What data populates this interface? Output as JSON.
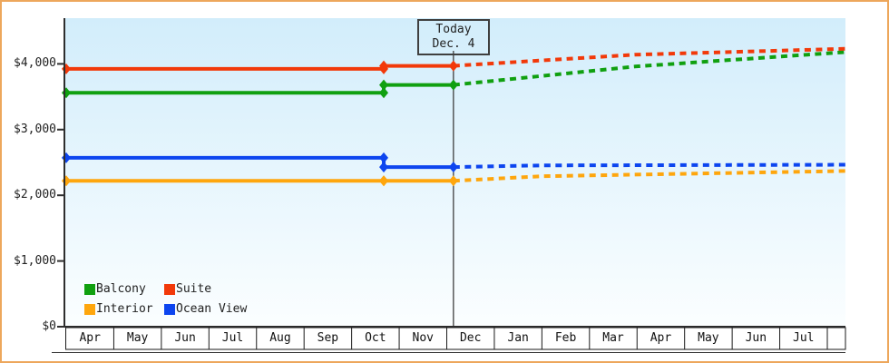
{
  "page": {
    "background": "#ffffff",
    "frame_border_color": "#eda75c",
    "axis_color": "#2e2e2e",
    "plot_bg_top": "#d2edfb",
    "plot_bg_bottom": "#fbfeff"
  },
  "today_flag": {
    "line1": "Today",
    "line2": "Dec. 4"
  },
  "chart_data": {
    "type": "line",
    "title": "",
    "xlabel": "",
    "ylabel": "",
    "grid": false,
    "legend_position": "bottom-left-inside",
    "x_axis": {
      "months": [
        "Apr",
        "May",
        "Jun",
        "Jul",
        "Aug",
        "Sep",
        "Oct",
        "Nov",
        "Dec",
        "Jan",
        "Feb",
        "Mar",
        "Apr",
        "May",
        "Jun",
        "Jul"
      ],
      "domain_months": [
        0,
        16.38
      ]
    },
    "y_axis": {
      "range": [
        0,
        4700
      ],
      "ticks": [
        {
          "label": "$0",
          "value": 0
        },
        {
          "label": "$1,000",
          "value": 1000
        },
        {
          "label": "$2,000",
          "value": 2000
        },
        {
          "label": "$3,000",
          "value": 3000
        },
        {
          "label": "$4,000",
          "value": 4000
        }
      ]
    },
    "today": {
      "x_month": 8.14,
      "label": "Today Dec. 4"
    },
    "series": [
      {
        "name": "Balcony",
        "color": "#10a010",
        "solid": [
          [
            0,
            3560
          ],
          [
            6.675,
            3560
          ],
          [
            6.675,
            3680
          ],
          [
            8.14,
            3680
          ]
        ],
        "dashed": [
          [
            8.14,
            3680
          ],
          [
            11.96,
            3960
          ],
          [
            16.38,
            4180
          ]
        ]
      },
      {
        "name": "Suite",
        "color": "#f2390a",
        "solid": [
          [
            0,
            3925
          ],
          [
            6.675,
            3925
          ],
          [
            6.675,
            3970
          ],
          [
            8.14,
            3970
          ]
        ],
        "dashed": [
          [
            8.14,
            3970
          ],
          [
            11.96,
            4140
          ],
          [
            16.38,
            4230
          ]
        ]
      },
      {
        "name": "Interior",
        "color": "#fea60d",
        "solid": [
          [
            0,
            2220
          ],
          [
            6.675,
            2220
          ],
          [
            6.675,
            2220
          ],
          [
            8.14,
            2220
          ]
        ],
        "dashed": [
          [
            8.14,
            2220
          ],
          [
            10.0,
            2290
          ],
          [
            16.38,
            2370
          ]
        ]
      },
      {
        "name": "Ocean View",
        "color": "#0d45ef",
        "solid": [
          [
            0,
            2570
          ],
          [
            6.675,
            2570
          ],
          [
            6.675,
            2430
          ],
          [
            8.14,
            2430
          ]
        ],
        "dashed": [
          [
            8.14,
            2430
          ],
          [
            10.0,
            2455
          ],
          [
            16.38,
            2465
          ]
        ]
      }
    ],
    "legend": {
      "rows": [
        [
          {
            "label": "Balcony",
            "color": "#10a010"
          },
          {
            "label": "Suite",
            "color": "#f2390a"
          }
        ],
        [
          {
            "label": "Interior",
            "color": "#fea60d"
          },
          {
            "label": "Ocean View",
            "color": "#0d45ef"
          }
        ]
      ]
    }
  }
}
